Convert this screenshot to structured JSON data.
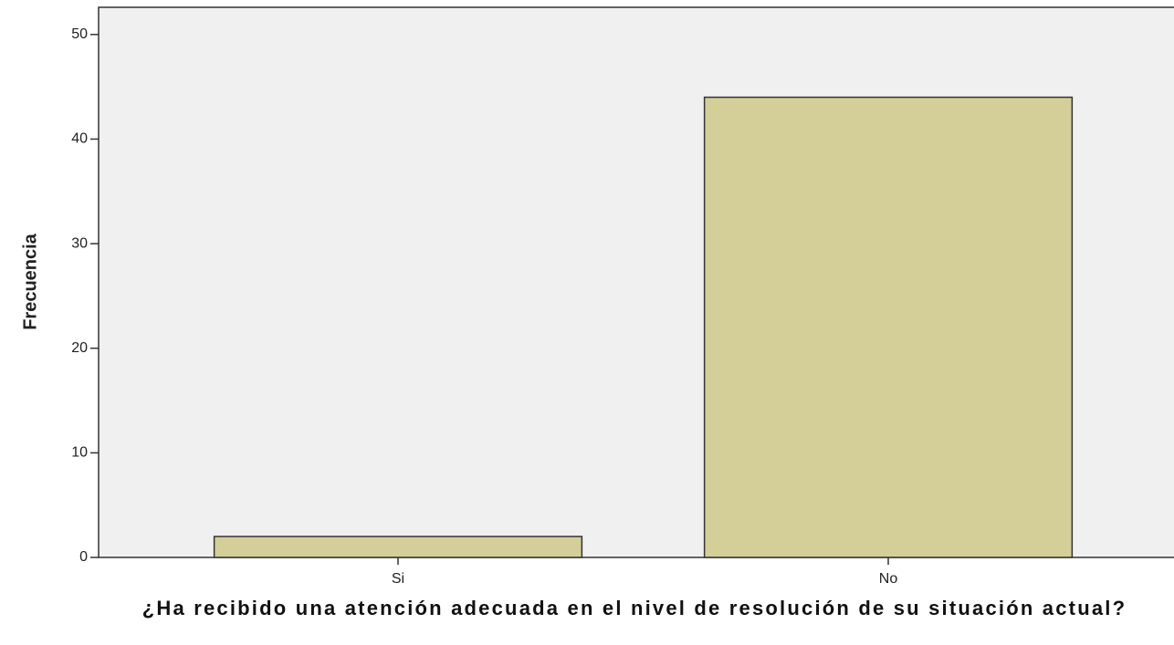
{
  "chart_data": {
    "type": "bar",
    "xlabel": "¿Ha recibido una atención adecuada en el nivel de resolución de su situación actual?",
    "ylabel": "Frecuencia",
    "categories": [
      "Si",
      "No"
    ],
    "values": [
      2,
      44
    ],
    "color": "#d4cf98",
    "ylim": [
      0,
      52.6
    ],
    "yticks": [
      0,
      10,
      20,
      30,
      40,
      50
    ]
  }
}
